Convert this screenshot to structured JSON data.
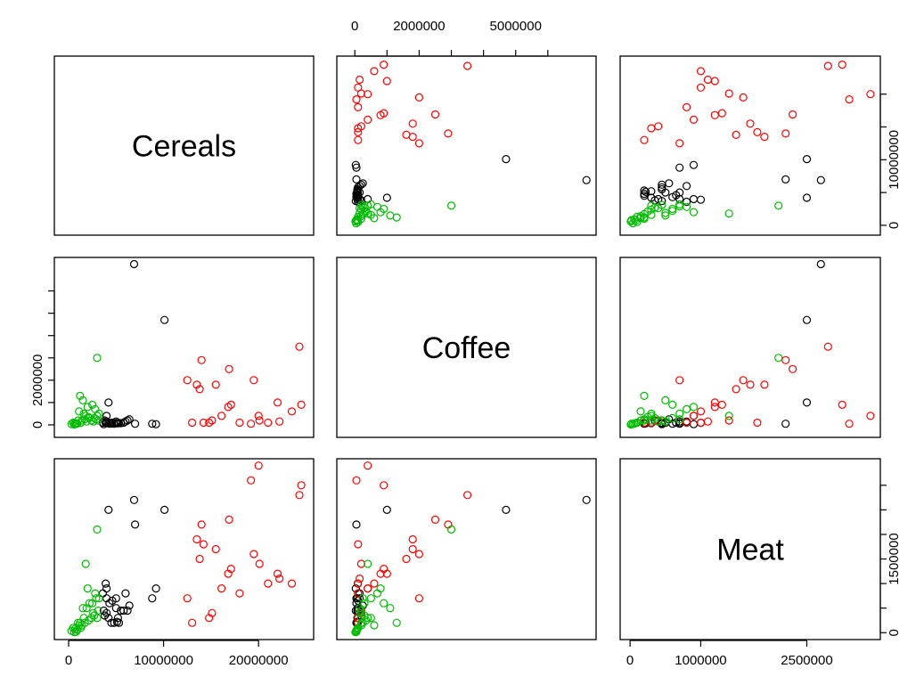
{
  "chart_data": {
    "type": "scatter",
    "variables": [
      "Cereals",
      "Coffee",
      "Meat"
    ],
    "series": [
      {
        "color": "#000000",
        "points": [
          [
            6900000,
            7200000,
            2700000
          ],
          [
            10100000,
            4700000,
            2500000
          ],
          [
            4200000,
            1000000,
            2500000
          ],
          [
            7000000,
            50000,
            2200000
          ],
          [
            8800000,
            50000,
            700000
          ],
          [
            9200000,
            30000,
            900000
          ],
          [
            4000000,
            400000,
            900000
          ],
          [
            4000000,
            150000,
            400000
          ],
          [
            3800000,
            200000,
            350000
          ],
          [
            4200000,
            100000,
            300000
          ],
          [
            4600000,
            100000,
            650000
          ],
          [
            5000000,
            90000,
            500000
          ],
          [
            5200000,
            80000,
            300000
          ],
          [
            5500000,
            80000,
            450000
          ],
          [
            6000000,
            150000,
            800000
          ],
          [
            6200000,
            200000,
            450000
          ],
          [
            6400000,
            250000,
            550000
          ],
          [
            5800000,
            100000,
            450000
          ],
          [
            4300000,
            50000,
            600000
          ],
          [
            4800000,
            50000,
            200000
          ],
          [
            5300000,
            80000,
            200000
          ],
          [
            3600000,
            100000,
            800000
          ],
          [
            4000000,
            80000,
            700000
          ],
          [
            4500000,
            60000,
            200000
          ],
          [
            5100000,
            70000,
            220000
          ],
          [
            3700000,
            30000,
            450000
          ],
          [
            3900000,
            90000,
            1000000
          ],
          [
            5000000,
            150000,
            700000
          ]
        ]
      },
      {
        "color": "#ff0000",
        "points": [
          [
            13000000,
            100000,
            200000
          ],
          [
            13500000,
            1800000,
            1900000
          ],
          [
            14200000,
            100000,
            1800000
          ],
          [
            14800000,
            100000,
            300000
          ],
          [
            15100000,
            200000,
            400000
          ],
          [
            15500000,
            1800000,
            1700000
          ],
          [
            16100000,
            400000,
            900000
          ],
          [
            16800000,
            800000,
            1200000
          ],
          [
            17100000,
            900000,
            1300000
          ],
          [
            19200000,
            50000,
            3100000
          ],
          [
            20000000,
            400000,
            3400000
          ],
          [
            22000000,
            1000000,
            1200000
          ],
          [
            24300000,
            3500000,
            2800000
          ],
          [
            24500000,
            900000,
            3000000
          ],
          [
            20100000,
            200000,
            1400000
          ],
          [
            16900000,
            2500000,
            2300000
          ],
          [
            14000000,
            2900000,
            2200000
          ],
          [
            19500000,
            2000000,
            1600000
          ],
          [
            18000000,
            100000,
            800000
          ],
          [
            21000000,
            100000,
            1000000
          ],
          [
            22200000,
            150000,
            1100000
          ],
          [
            23500000,
            600000,
            1000000
          ],
          [
            12500000,
            2000000,
            700000
          ],
          [
            13800000,
            1600000,
            1500000
          ]
        ]
      },
      {
        "color": "#00bb00",
        "points": [
          [
            3000000,
            3000000,
            2100000
          ],
          [
            1200000,
            1300000,
            200000
          ],
          [
            1500000,
            1100000,
            500000
          ],
          [
            2000000,
            800000,
            900000
          ],
          [
            2500000,
            900000,
            600000
          ],
          [
            2800000,
            700000,
            800000
          ],
          [
            3200000,
            500000,
            700000
          ],
          [
            1800000,
            400000,
            1400000
          ],
          [
            1000000,
            200000,
            200000
          ],
          [
            2200000,
            300000,
            600000
          ],
          [
            2400000,
            200000,
            300000
          ],
          [
            2600000,
            150000,
            400000
          ],
          [
            1600000,
            500000,
            300000
          ],
          [
            1100000,
            600000,
            150000
          ],
          [
            2900000,
            250000,
            700000
          ],
          [
            1300000,
            100000,
            100000
          ],
          [
            500000,
            100000,
            100000
          ],
          [
            700000,
            80000,
            80000
          ],
          [
            900000,
            60000,
            60000
          ],
          [
            300000,
            40000,
            40000
          ],
          [
            1900000,
            150000,
            500000
          ],
          [
            3000000,
            400000,
            300000
          ],
          [
            2100000,
            350000,
            250000
          ],
          [
            1700000,
            250000,
            200000
          ],
          [
            1400000,
            200000,
            150000
          ],
          [
            2700000,
            300000,
            350000
          ],
          [
            3100000,
            200000,
            450000
          ],
          [
            800000,
            50000,
            20000
          ],
          [
            600000,
            20000,
            10000
          ]
        ]
      }
    ],
    "diagonal_labels": [
      "Cereals",
      "Coffee",
      "Meat"
    ],
    "ticks": {
      "Cereals": [
        "0",
        "10000000",
        "20000000"
      ],
      "Coffee": [
        "0",
        "2000000",
        "5000000"
      ],
      "Meat": [
        "0",
        "1000000",
        "2500000"
      ]
    },
    "ticks_panel": {
      "Cereals": [
        "0",
        "10000000"
      ],
      "Coffee": [
        "0",
        "2000000"
      ],
      "Meat": [
        "0",
        "1500000"
      ]
    }
  }
}
